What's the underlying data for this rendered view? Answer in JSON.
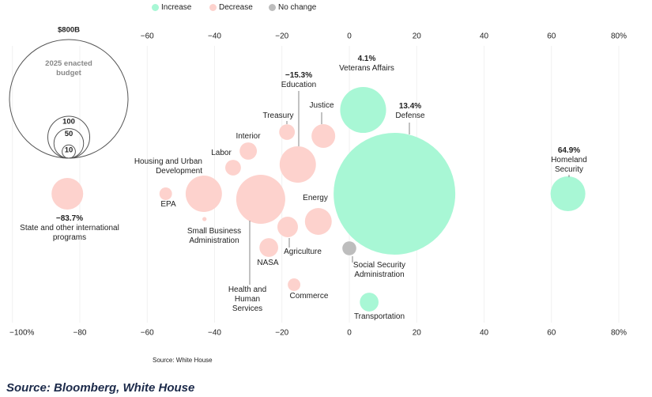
{
  "chart_data": {
    "type": "bubble",
    "series": [
      {
        "name": "Increase",
        "color": "#a8f7d5"
      },
      {
        "name": "Decrease",
        "color": "#fdd2cd"
      },
      {
        "name": "No change",
        "color": "#bdbdbd"
      }
    ],
    "labels": [
      "Veterans Affairs",
      "Defense",
      "Homeland Security",
      "Justice",
      "Education",
      "Treasury",
      "Interior",
      "Labor",
      "Housing and Urban Development",
      "EPA",
      "State and other international programs",
      "Health and Human Services",
      "Small Business Administration",
      "Energy",
      "Agriculture",
      "NASA",
      "Commerce",
      "Social Security Administration",
      "Transportation"
    ],
    "values": [
      4.1,
      13.4,
      64.9,
      -7.7,
      -15.3,
      -18.5,
      -30,
      -34.5,
      -43.2,
      -54.5,
      -83.7,
      -26.3,
      -43,
      -9.2,
      -18.3,
      -23.9,
      -16.4,
      0,
      5.9
    ],
    "value_labels": [
      "4.1%",
      "13.4%",
      "64.9%",
      null,
      "−15.3%",
      null,
      null,
      null,
      null,
      null,
      "−83.7%",
      null,
      null,
      null,
      null,
      null,
      null,
      null,
      null
    ],
    "sizes": [
      120,
      843,
      69,
      32,
      75,
      14,
      17,
      14,
      75,
      9,
      57,
      137,
      1,
      41,
      24,
      20,
      9,
      11,
      20
    ],
    "groups": [
      0,
      0,
      0,
      1,
      1,
      1,
      1,
      1,
      1,
      1,
      1,
      1,
      1,
      1,
      1,
      1,
      1,
      2,
      0
    ],
    "size_legend": {
      "title": "2025 enacted budget",
      "sizes": [
        {
          "value": 800,
          "label": "$800B"
        },
        100,
        50,
        10
      ]
    },
    "xlim": [
      -100,
      80
    ],
    "xticks": [
      {
        "value": -100,
        "label": "−100%"
      },
      {
        "value": -80,
        "label": "−80"
      },
      {
        "value": -60,
        "label": "−60"
      },
      {
        "value": -40,
        "label": "−40"
      },
      {
        "value": -20,
        "label": "−20"
      },
      0,
      20,
      40,
      60,
      {
        "value": 80,
        "label": "80%"
      }
    ],
    "grid": true,
    "note": "Source: White House",
    "caption": "Source: Bloomberg, White House"
  }
}
